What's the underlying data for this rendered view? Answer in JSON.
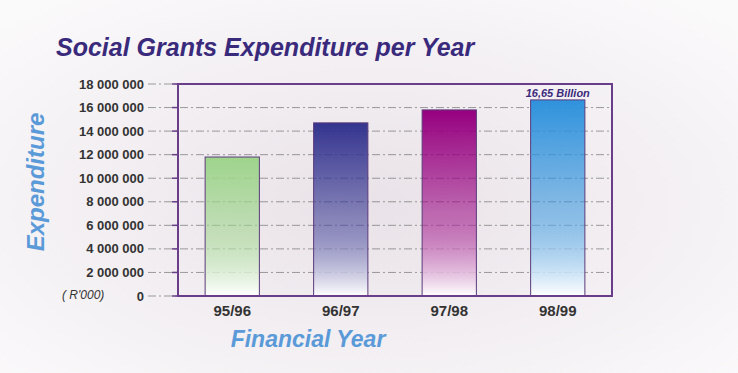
{
  "chart_data": {
    "type": "bar",
    "title": "Social Grants Expenditure per Year",
    "y_label": "Expenditure",
    "y_unit": "( R'000)",
    "x_label": "Financial Year",
    "categories": [
      "95/96",
      "96/97",
      "97/98",
      "98/99"
    ],
    "values": [
      11800000,
      14700000,
      15800000,
      16650000
    ],
    "colors": [
      "#9ed48c",
      "#34348f",
      "#96007f",
      "#2f92dc"
    ],
    "annotations": [
      {
        "text": "16,65 Billion",
        "category": "98/99"
      }
    ],
    "ylim": [
      0,
      18000000
    ],
    "yticks": [
      0,
      {
        "value": 2000000,
        "label": "2 000 000"
      },
      {
        "value": 4000000,
        "label": "4 000 000"
      },
      {
        "value": 6000000,
        "label": "6 000 000"
      },
      {
        "value": 8000000,
        "label": "8 000 000"
      },
      {
        "value": 10000000,
        "label": "10 000 000"
      },
      {
        "value": 12000000,
        "label": "12 000 000"
      },
      {
        "value": 14000000,
        "label": "14 000 000"
      },
      {
        "value": 16000000,
        "label": "16 000 000"
      },
      {
        "value": 18000000,
        "label": "18 000 000"
      }
    ],
    "grid": true
  }
}
